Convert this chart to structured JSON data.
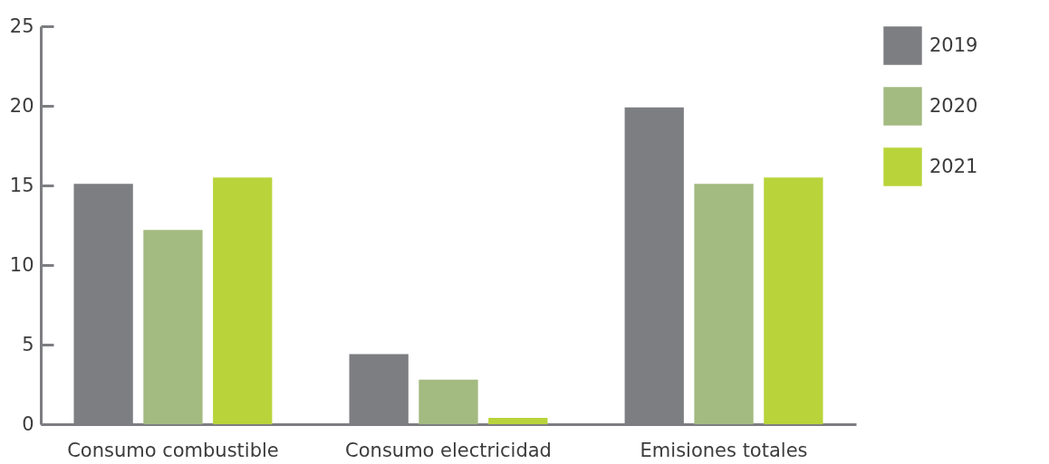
{
  "chart_data": {
    "type": "bar",
    "categories": [
      "Consumo combustible",
      "Consumo electricidad",
      "Emisiones totales"
    ],
    "series": [
      {
        "name": "2019",
        "color": "#7d7e82",
        "values": [
          15.1,
          4.4,
          19.9
        ]
      },
      {
        "name": "2020",
        "color": "#a3ba80",
        "values": [
          12.2,
          2.8,
          15.1
        ]
      },
      {
        "name": "2021",
        "color": "#b8d43a",
        "values": [
          15.5,
          0.4,
          15.5
        ]
      }
    ],
    "ylim": [
      0,
      25
    ],
    "yticks": [
      0,
      5,
      10,
      15,
      20,
      25
    ],
    "legend": "right"
  }
}
